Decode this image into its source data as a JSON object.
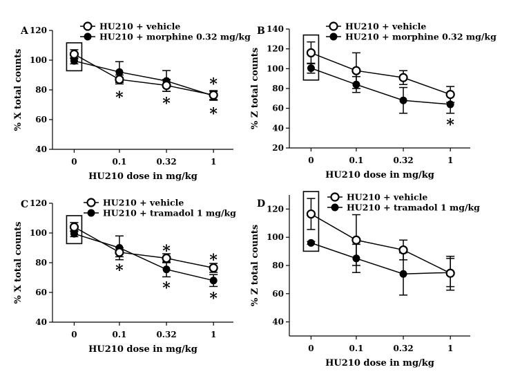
{
  "chart_data": [
    {
      "panel": "A",
      "type": "line",
      "categories": [
        "0",
        "0.1",
        "0.32",
        "1"
      ],
      "xlabel": "HU210 dose in mg/kg",
      "ylabel": "% X total counts",
      "ylim": [
        40,
        120
      ],
      "yticks": [
        "40",
        "60",
        "80",
        "100",
        "120"
      ],
      "legend_position": "top-left",
      "series": [
        {
          "name": "HU210 + vehicle",
          "marker": "open",
          "values": [
            104,
            87,
            83,
            76.5
          ],
          "err": [
            3,
            3,
            4,
            3
          ]
        },
        {
          "name": "HU210 + morphine 0.32 mg/kg",
          "marker": "filled",
          "values": [
            99.5,
            92,
            86,
            76
          ],
          "err": [
            2,
            7,
            7,
            3
          ]
        }
      ],
      "significance": [
        {
          "category": 1,
          "value": 78,
          "label": "*"
        },
        {
          "category": 2,
          "value": 74,
          "label": "*"
        },
        {
          "category": 3,
          "value": 87,
          "label": "*"
        },
        {
          "category": 3,
          "value": 67,
          "label": "*"
        }
      ],
      "box_category": 0
    },
    {
      "panel": "B",
      "type": "line",
      "categories": [
        "0",
        "0.1",
        "0.32",
        "1"
      ],
      "xlabel": "HU210 dose in mg/kg",
      "ylabel": "% Z total counts",
      "ylim": [
        20,
        140
      ],
      "yticks": [
        "20",
        "40",
        "60",
        "80",
        "100",
        "120",
        "140"
      ],
      "legend_position": "top-left",
      "series": [
        {
          "name": "HU210 + vehicle",
          "marker": "open",
          "values": [
            116,
            98,
            91,
            74
          ],
          "err": [
            11,
            18,
            7,
            8
          ]
        },
        {
          "name": "HU210 + morphine 0.32 mg/kg",
          "marker": "filled",
          "values": [
            100.5,
            84,
            68,
            64
          ],
          "err": [
            5,
            8,
            13,
            9
          ]
        }
      ],
      "significance": [
        {
          "category": 3,
          "value": 48,
          "label": "*"
        }
      ],
      "box_category": 0
    },
    {
      "panel": "C",
      "type": "line",
      "categories": [
        "0",
        "0.1",
        "0.32",
        "1"
      ],
      "xlabel": "HU210 dose in mg/kg",
      "ylabel": "% X total counts",
      "ylim": [
        40,
        120
      ],
      "yticks": [
        "40",
        "60",
        "80",
        "100",
        "120"
      ],
      "legend_position": "top-left",
      "series": [
        {
          "name": "HU210 + vehicle",
          "marker": "open",
          "values": [
            104,
            87,
            83,
            76.5
          ],
          "err": [
            3,
            3,
            3,
            3
          ]
        },
        {
          "name": "HU210 + tramadol 1 mg/kg",
          "marker": "filled",
          "values": [
            99.5,
            90,
            75.5,
            68
          ],
          "err": [
            2,
            8,
            5,
            4
          ]
        }
      ],
      "significance": [
        {
          "category": 1,
          "value": 78,
          "label": "*"
        },
        {
          "category": 2,
          "value": 91,
          "label": "*"
        },
        {
          "category": 2,
          "value": 66,
          "label": "*"
        },
        {
          "category": 3,
          "value": 85,
          "label": "*"
        },
        {
          "category": 3,
          "value": 59,
          "label": "*"
        }
      ],
      "box_category": 0
    },
    {
      "panel": "D",
      "type": "line",
      "categories": [
        "0",
        "0.1",
        "0.32",
        "1"
      ],
      "xlabel": "HU210 dose in mg/kg",
      "ylabel": "% Z total counts",
      "ylim": [
        30,
        130
      ],
      "yticks": [
        "40",
        "60",
        "80",
        "100",
        "120"
      ],
      "legend_position": "top-left",
      "series": [
        {
          "name": "HU210 + vehicle",
          "marker": "open",
          "values": [
            116.5,
            98,
            91,
            74.5
          ],
          "err": [
            11,
            18,
            7,
            12
          ]
        },
        {
          "name": "HU210 + tramadol 1 mg/kg",
          "marker": "filled",
          "values": [
            96,
            85,
            74,
            75
          ],
          "err": [
            1,
            10,
            15,
            10
          ]
        }
      ],
      "significance": [],
      "box_category": 0
    }
  ],
  "colors": {
    "ink": "#000000",
    "background": "#ffffff"
  }
}
